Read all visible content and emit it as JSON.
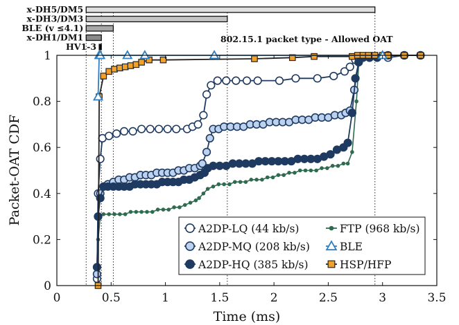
{
  "chart_data": {
    "type": "line",
    "xlabel": "Time (ms)",
    "ylabel": "Packet-OAT CDF",
    "xlim": [
      0,
      3.5
    ],
    "ylim": [
      0,
      1
    ],
    "x_ticks": [
      "0",
      "0.5",
      "1",
      "1.5",
      "2",
      "2.5",
      "3",
      "3.5"
    ],
    "y_ticks": [
      "0",
      "0.2",
      "0.4",
      "0.6",
      "0.8",
      "1"
    ],
    "annotation": "802.15.1 packet type - Allowed OAT",
    "legend_position": "bottom-right",
    "allowed_oat_bars": [
      {
        "label": "x-DH5/DM5",
        "start": 0.27,
        "end": 2.93,
        "fill": "#e0e0e0"
      },
      {
        "label": "x-DH3/DM3",
        "start": 0.27,
        "end": 1.57,
        "fill": "#c4c4c4"
      },
      {
        "label": "BLE (v ≤4.1)",
        "start": 0.27,
        "end": 0.52,
        "fill": "#a8a8a8"
      },
      {
        "label": "x-DH1/DM1",
        "start": 0.27,
        "end": 0.41,
        "fill": "#8a8a8a"
      },
      {
        "label": "HV1-3",
        "start": 0.39,
        "end": 0.41,
        "fill": "#000000"
      }
    ],
    "series": [
      {
        "name": "A2DP-LQ (44 kb/s)",
        "color": "#1e3a60",
        "fill": "#ffffff",
        "marker": "circle",
        "x": [
          0.37,
          0.38,
          0.4,
          0.42,
          0.48,
          0.55,
          0.62,
          0.7,
          0.78,
          0.86,
          0.94,
          1.02,
          1.1,
          1.2,
          1.25,
          1.3,
          1.35,
          1.38,
          1.42,
          1.48,
          1.56,
          1.65,
          1.75,
          1.85,
          2.05,
          2.2,
          2.4,
          2.55,
          2.65,
          2.7,
          2.75,
          2.78,
          2.82,
          2.88,
          2.95,
          3.05,
          3.2,
          3.35
        ],
        "y": [
          0.03,
          0.4,
          0.55,
          0.64,
          0.65,
          0.66,
          0.67,
          0.67,
          0.68,
          0.68,
          0.68,
          0.68,
          0.68,
          0.68,
          0.69,
          0.7,
          0.74,
          0.83,
          0.87,
          0.89,
          0.89,
          0.89,
          0.89,
          0.89,
          0.89,
          0.9,
          0.9,
          0.91,
          0.93,
          0.95,
          0.98,
          0.99,
          0.99,
          0.99,
          0.99,
          0.99,
          1.0,
          1.0
        ]
      },
      {
        "name": "A2DP-MQ (208 kb/s)",
        "color": "#1e3a60",
        "fill": "#bcd2ef",
        "marker": "circle",
        "x": [
          0.37,
          0.38,
          0.4,
          0.43,
          0.47,
          0.52,
          0.57,
          0.62,
          0.67,
          0.72,
          0.77,
          0.82,
          0.87,
          0.92,
          0.97,
          1.02,
          1.07,
          1.12,
          1.17,
          1.22,
          1.27,
          1.32,
          1.34,
          1.38,
          1.41,
          1.44,
          1.49,
          1.54,
          1.6,
          1.66,
          1.72,
          1.78,
          1.84,
          1.9,
          1.96,
          2.02,
          2.08,
          2.14,
          2.2,
          2.26,
          2.32,
          2.38,
          2.44,
          2.5,
          2.56,
          2.62,
          2.66,
          2.7,
          2.74,
          2.78,
          2.82,
          2.88,
          2.95,
          3.05,
          3.2,
          3.35
        ],
        "y": [
          0.05,
          0.3,
          0.4,
          0.43,
          0.44,
          0.45,
          0.46,
          0.46,
          0.47,
          0.47,
          0.48,
          0.48,
          0.48,
          0.49,
          0.49,
          0.49,
          0.49,
          0.5,
          0.5,
          0.51,
          0.51,
          0.52,
          0.53,
          0.58,
          0.64,
          0.68,
          0.68,
          0.69,
          0.69,
          0.69,
          0.69,
          0.7,
          0.7,
          0.7,
          0.71,
          0.71,
          0.71,
          0.71,
          0.72,
          0.72,
          0.72,
          0.73,
          0.73,
          0.73,
          0.74,
          0.74,
          0.75,
          0.76,
          0.85,
          0.97,
          0.99,
          0.99,
          0.99,
          1.0,
          1.0,
          1.0
        ]
      },
      {
        "name": "A2DP-HQ (385 kb/s)",
        "color": "#1e3a60",
        "fill": "#1e3a60",
        "marker": "circle",
        "x": [
          0.37,
          0.38,
          0.4,
          0.43,
          0.47,
          0.52,
          0.57,
          0.62,
          0.67,
          0.72,
          0.77,
          0.82,
          0.87,
          0.92,
          0.97,
          1.02,
          1.07,
          1.12,
          1.17,
          1.22,
          1.27,
          1.32,
          1.36,
          1.39,
          1.44,
          1.5,
          1.56,
          1.62,
          1.68,
          1.74,
          1.8,
          1.86,
          1.92,
          1.98,
          2.04,
          2.1,
          2.16,
          2.22,
          2.28,
          2.34,
          2.4,
          2.46,
          2.52,
          2.58,
          2.64,
          2.68,
          2.72,
          2.75,
          2.78,
          2.82,
          2.88,
          2.95,
          3.05,
          3.2,
          3.35
        ],
        "y": [
          0.08,
          0.3,
          0.38,
          0.43,
          0.43,
          0.43,
          0.43,
          0.43,
          0.43,
          0.44,
          0.44,
          0.44,
          0.44,
          0.44,
          0.45,
          0.45,
          0.45,
          0.45,
          0.46,
          0.46,
          0.47,
          0.48,
          0.49,
          0.51,
          0.52,
          0.52,
          0.52,
          0.53,
          0.53,
          0.53,
          0.53,
          0.54,
          0.54,
          0.54,
          0.54,
          0.54,
          0.54,
          0.55,
          0.55,
          0.55,
          0.55,
          0.56,
          0.57,
          0.59,
          0.6,
          0.62,
          0.75,
          0.9,
          0.97,
          0.99,
          0.99,
          0.99,
          1.0,
          1.0,
          1.0
        ]
      },
      {
        "name": "FTP (968 kb/s)",
        "color": "#2e6b4f",
        "fill": "#2e6b4f",
        "marker": "dot",
        "x": [
          0.37,
          0.38,
          0.4,
          0.43,
          0.48,
          0.53,
          0.58,
          0.63,
          0.68,
          0.73,
          0.78,
          0.83,
          0.88,
          0.93,
          0.98,
          1.03,
          1.08,
          1.13,
          1.18,
          1.23,
          1.28,
          1.31,
          1.35,
          1.39,
          1.44,
          1.49,
          1.54,
          1.59,
          1.64,
          1.69,
          1.74,
          1.79,
          1.84,
          1.89,
          1.94,
          1.99,
          2.04,
          2.09,
          2.14,
          2.19,
          2.24,
          2.29,
          2.34,
          2.39,
          2.44,
          2.49,
          2.54,
          2.59,
          2.64,
          2.68,
          2.72,
          2.76,
          2.78,
          2.82,
          2.88,
          2.95,
          3.05,
          3.2,
          3.35
        ],
        "y": [
          0.0,
          0.2,
          0.3,
          0.31,
          0.31,
          0.31,
          0.31,
          0.31,
          0.32,
          0.32,
          0.32,
          0.32,
          0.32,
          0.33,
          0.33,
          0.33,
          0.34,
          0.34,
          0.35,
          0.36,
          0.37,
          0.38,
          0.4,
          0.42,
          0.43,
          0.44,
          0.44,
          0.44,
          0.45,
          0.45,
          0.45,
          0.46,
          0.46,
          0.46,
          0.47,
          0.47,
          0.48,
          0.48,
          0.49,
          0.49,
          0.5,
          0.5,
          0.5,
          0.5,
          0.51,
          0.51,
          0.52,
          0.52,
          0.53,
          0.53,
          0.58,
          0.8,
          0.96,
          0.99,
          0.99,
          0.99,
          1.0,
          1.0,
          1.0
        ]
      },
      {
        "name": "BLE",
        "color": "#2f7fc1",
        "fill": "#ffffff",
        "marker": "triangle",
        "x": [
          0.38,
          0.39,
          0.4,
          0.65,
          0.81,
          1.45,
          3.0
        ],
        "y": [
          0.82,
          1.0,
          1.0,
          1.0,
          1.0,
          1.0,
          1.0
        ]
      },
      {
        "name": "HSP/HFP",
        "color": "#222222",
        "fill": "#f2a22b",
        "marker": "square",
        "x": [
          0.38,
          0.39,
          0.43,
          0.48,
          0.53,
          0.58,
          0.63,
          0.68,
          0.73,
          0.78,
          0.85,
          0.98,
          1.82,
          2.17,
          2.37,
          2.72,
          2.77,
          2.82,
          2.87,
          2.93,
          3.0,
          3.05,
          3.2,
          3.35
        ],
        "y": [
          0.0,
          0.82,
          0.91,
          0.93,
          0.94,
          0.945,
          0.95,
          0.955,
          0.96,
          0.97,
          0.98,
          0.98,
          0.985,
          0.99,
          0.995,
          0.995,
          1.0,
          1.0,
          1.0,
          1.0,
          1.0,
          1.0,
          1.0,
          1.0
        ]
      }
    ]
  }
}
